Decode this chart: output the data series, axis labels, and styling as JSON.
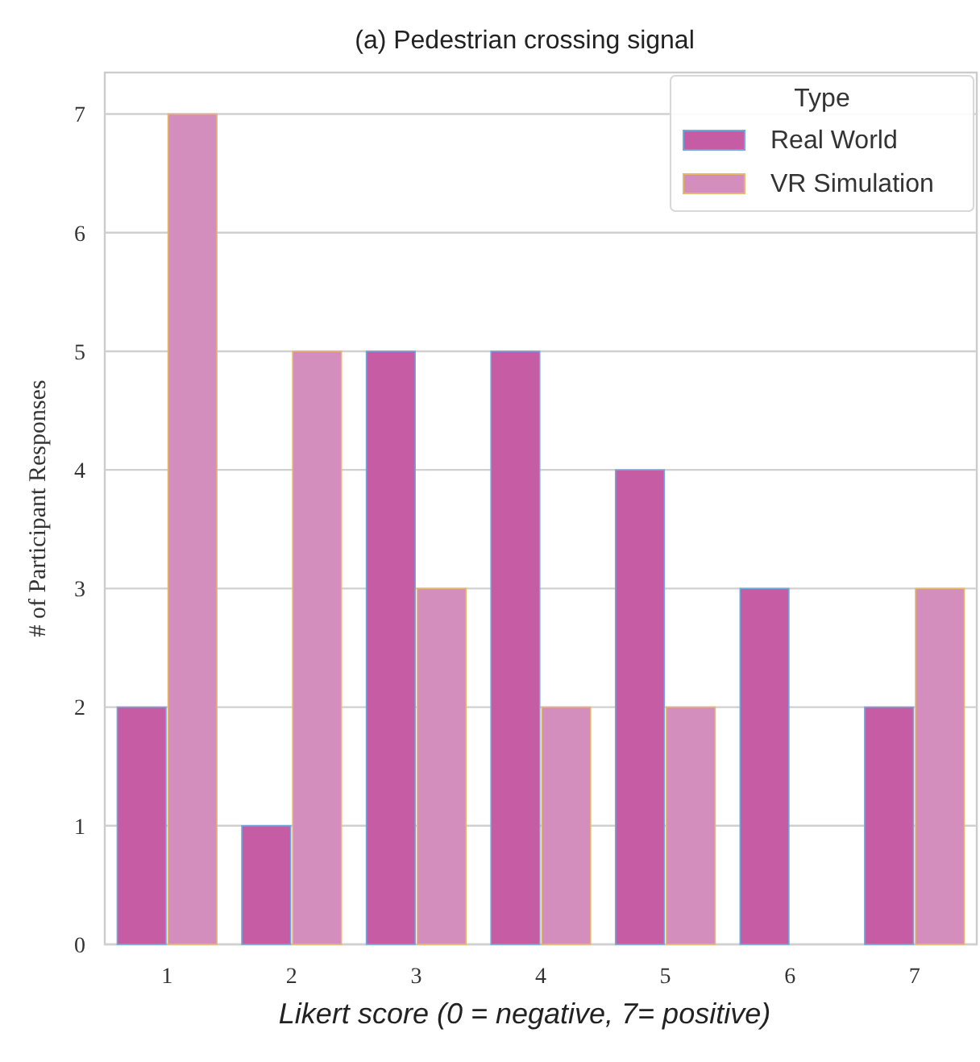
{
  "chart_data": {
    "type": "bar",
    "title": "(a) Pedestrian crossing signal",
    "xlabel": "Likert score (0 = negative, 7= positive)",
    "ylabel": "# of Participant Responses",
    "legend_title": "Type",
    "categories": [
      "1",
      "2",
      "3",
      "4",
      "5",
      "6",
      "7"
    ],
    "series": [
      {
        "name": "Real World",
        "color": "#c55ca4",
        "values": [
          2,
          1,
          5,
          5,
          4,
          3,
          2
        ]
      },
      {
        "name": "VR Simulation",
        "color": "#d48ebd",
        "values": [
          7,
          5,
          3,
          2,
          2,
          0,
          3
        ]
      }
    ],
    "ylim": [
      0,
      7.35
    ],
    "yticks": [
      0,
      1,
      2,
      3,
      4,
      5,
      6,
      7
    ],
    "grid": "y",
    "legend": "top right"
  }
}
